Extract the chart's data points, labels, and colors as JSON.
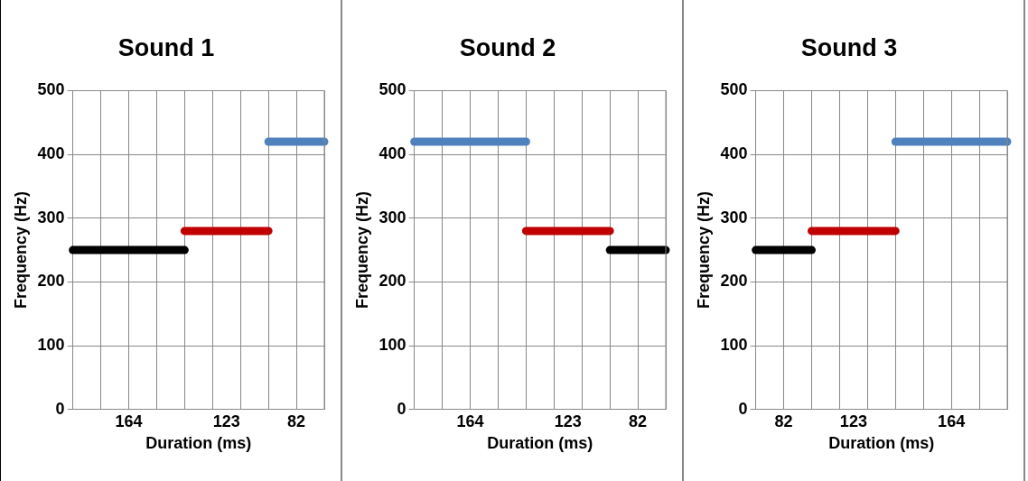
{
  "chart_data": [
    {
      "type": "line",
      "title": "Sound 1",
      "xlabel": "Duration (ms)",
      "ylabel": "Frequency (Hz)",
      "categories": [
        null,
        null,
        null,
        null,
        "164",
        null,
        null,
        null,
        null,
        null,
        null,
        "123",
        null,
        null,
        null,
        null,
        "82",
        null,
        null
      ],
      "ylim": [
        0,
        500
      ],
      "yticks": [
        0,
        100,
        200,
        300,
        400,
        500
      ],
      "grid": true,
      "legend": false,
      "marker": "none",
      "line_style": "solid",
      "series": [
        {
          "color": "#000000",
          "values": [
            250,
            250,
            250,
            250,
            250,
            250,
            250,
            250,
            250,
            null,
            null,
            null,
            null,
            null,
            null,
            null,
            null,
            null,
            null
          ]
        },
        {
          "color": "#c00000",
          "values": [
            null,
            null,
            null,
            null,
            null,
            null,
            null,
            null,
            280,
            280,
            280,
            280,
            280,
            280,
            280,
            null,
            null,
            null,
            null
          ]
        },
        {
          "color": "#4f81bd",
          "values": [
            null,
            null,
            null,
            null,
            null,
            null,
            null,
            null,
            null,
            null,
            null,
            null,
            null,
            null,
            420,
            420,
            420,
            420,
            420
          ]
        }
      ]
    },
    {
      "type": "line",
      "title": "Sound 2",
      "xlabel": "Duration (ms)",
      "ylabel": "Frequency (Hz)",
      "categories": [
        null,
        null,
        null,
        null,
        "164",
        null,
        null,
        null,
        null,
        null,
        null,
        "123",
        null,
        null,
        null,
        null,
        "82",
        null,
        null
      ],
      "ylim": [
        0,
        500
      ],
      "yticks": [
        0,
        100,
        200,
        300,
        400,
        500
      ],
      "grid": true,
      "legend": false,
      "marker": "none",
      "line_style": "solid",
      "series": [
        {
          "color": "#4f81bd",
          "values": [
            420,
            420,
            420,
            420,
            420,
            420,
            420,
            420,
            420,
            null,
            null,
            null,
            null,
            null,
            null,
            null,
            null,
            null,
            null
          ]
        },
        {
          "color": "#c00000",
          "values": [
            null,
            null,
            null,
            null,
            null,
            null,
            null,
            null,
            280,
            280,
            280,
            280,
            280,
            280,
            280,
            null,
            null,
            null,
            null
          ]
        },
        {
          "color": "#000000",
          "values": [
            null,
            null,
            null,
            null,
            null,
            null,
            null,
            null,
            null,
            null,
            null,
            null,
            null,
            null,
            250,
            250,
            250,
            250,
            250
          ]
        }
      ]
    },
    {
      "type": "line",
      "title": "Sound 3",
      "xlabel": "Duration (ms)",
      "ylabel": "Frequency (Hz)",
      "categories": [
        null,
        null,
        "82",
        null,
        null,
        null,
        null,
        "123",
        null,
        null,
        null,
        null,
        null,
        null,
        "164",
        null,
        null,
        null,
        null
      ],
      "ylim": [
        0,
        500
      ],
      "yticks": [
        0,
        100,
        200,
        300,
        400,
        500
      ],
      "grid": true,
      "legend": false,
      "marker": "none",
      "line_style": "solid",
      "series": [
        {
          "color": "#000000",
          "values": [
            250,
            250,
            250,
            250,
            250,
            null,
            null,
            null,
            null,
            null,
            null,
            null,
            null,
            null,
            null,
            null,
            null,
            null,
            null
          ]
        },
        {
          "color": "#c00000",
          "values": [
            null,
            null,
            null,
            null,
            280,
            280,
            280,
            280,
            280,
            280,
            280,
            null,
            null,
            null,
            null,
            null,
            null,
            null,
            null
          ]
        },
        {
          "color": "#4f81bd",
          "values": [
            null,
            null,
            null,
            null,
            null,
            null,
            null,
            null,
            null,
            null,
            420,
            420,
            420,
            420,
            420,
            420,
            420,
            420,
            420
          ]
        }
      ]
    }
  ]
}
